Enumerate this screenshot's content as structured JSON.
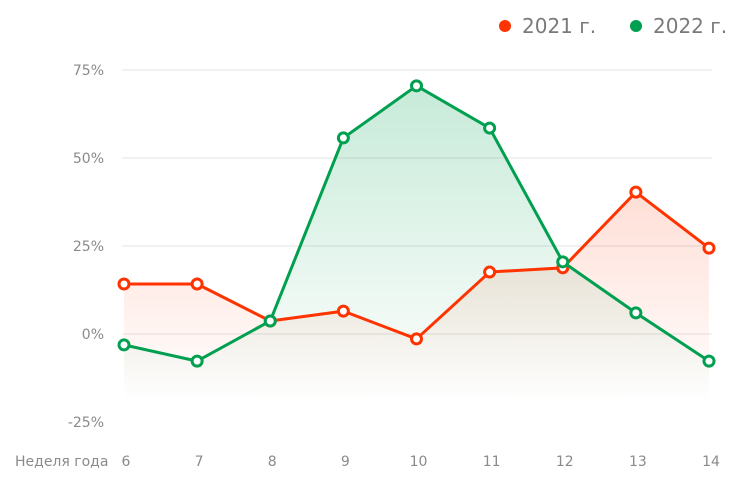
{
  "chart_data": {
    "type": "line",
    "xlabel": "Неделя года",
    "ylabel": "",
    "categories": [
      "6",
      "7",
      "8",
      "9",
      "10",
      "11",
      "12",
      "13",
      "14"
    ],
    "yticks": [
      "75%",
      "50%",
      "25%",
      "0%",
      "-25%"
    ],
    "ytick_values": [
      75,
      50,
      25,
      0,
      -25
    ],
    "ylim": [
      -25,
      75
    ],
    "grid": true,
    "legend_position": "top-right",
    "series": [
      {
        "name": "2021 г.",
        "color": "#ff3300",
        "values": [
          14.2,
          14.2,
          3.7,
          6.5,
          -1.4,
          17.6,
          18.8,
          40.3,
          24.4
        ]
      },
      {
        "name": "2022 г.",
        "color": "#00a050",
        "values": [
          -3.1,
          -7.7,
          3.7,
          55.7,
          70.5,
          58.5,
          20.5,
          6.0,
          -7.7
        ]
      }
    ]
  }
}
